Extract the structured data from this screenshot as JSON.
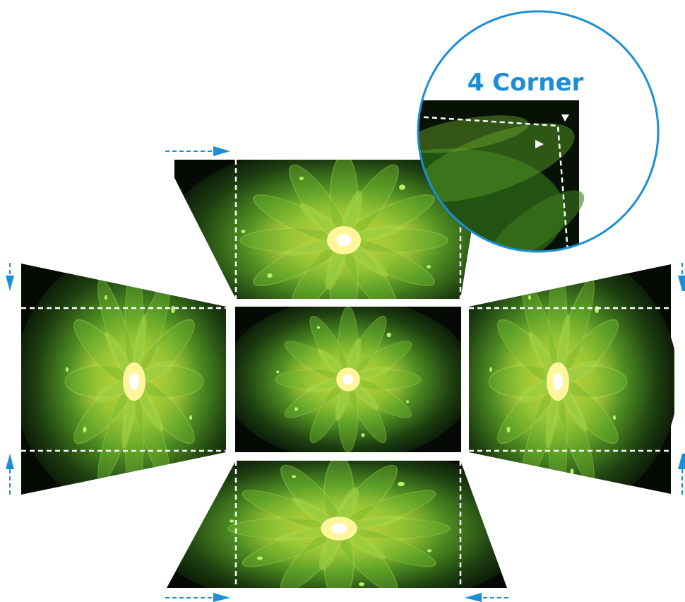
{
  "diagram": {
    "callout_title": "4 Corner",
    "panels": [
      "top",
      "left",
      "center",
      "right",
      "bottom"
    ]
  },
  "colors": {
    "accent": "#1a8fd6",
    "guide": "#ffffff",
    "image_dark": "#050a04",
    "image_leaf": "#2f6b18",
    "image_glow": "#f6e23a"
  },
  "icons": {
    "arrow": "arrow-icon",
    "corner_marker": "triangle-marker-icon"
  }
}
